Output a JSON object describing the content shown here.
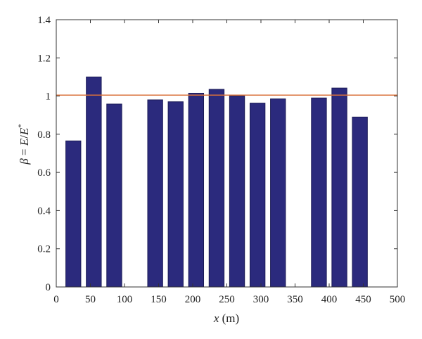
{
  "chart_data": {
    "type": "bar",
    "x": [
      25,
      55,
      85,
      145,
      175,
      205,
      235,
      265,
      295,
      325,
      385,
      415,
      445
    ],
    "values": [
      0.765,
      1.1,
      0.958,
      0.98,
      0.97,
      1.015,
      1.035,
      1.0,
      0.963,
      0.985,
      0.99,
      1.042,
      0.89
    ],
    "bar_width": 22,
    "xlim": [
      0,
      500
    ],
    "ylim": [
      0,
      1.4
    ],
    "xticks": [
      "0",
      "50",
      "100",
      "150",
      "200",
      "250",
      "300",
      "350",
      "400",
      "450",
      "500"
    ],
    "yticks": [
      "0",
      "0.2",
      "0.4",
      "0.6",
      "0.8",
      "1",
      "1.2",
      "1.4"
    ],
    "xlabel": {
      "var": "x",
      "unit": " (m)"
    },
    "ylabel": {
      "beta": "β",
      "eq": " = ",
      "E": "E",
      "slash": "/",
      "Estar": "E",
      "sup": "*"
    },
    "reference_line": {
      "y": 1.005,
      "color": "#d9703a"
    },
    "colors": {
      "bar_fill": "#2b2a7d",
      "bar_edge": "#1a1a55",
      "axis": "#333333"
    },
    "grid": false
  }
}
